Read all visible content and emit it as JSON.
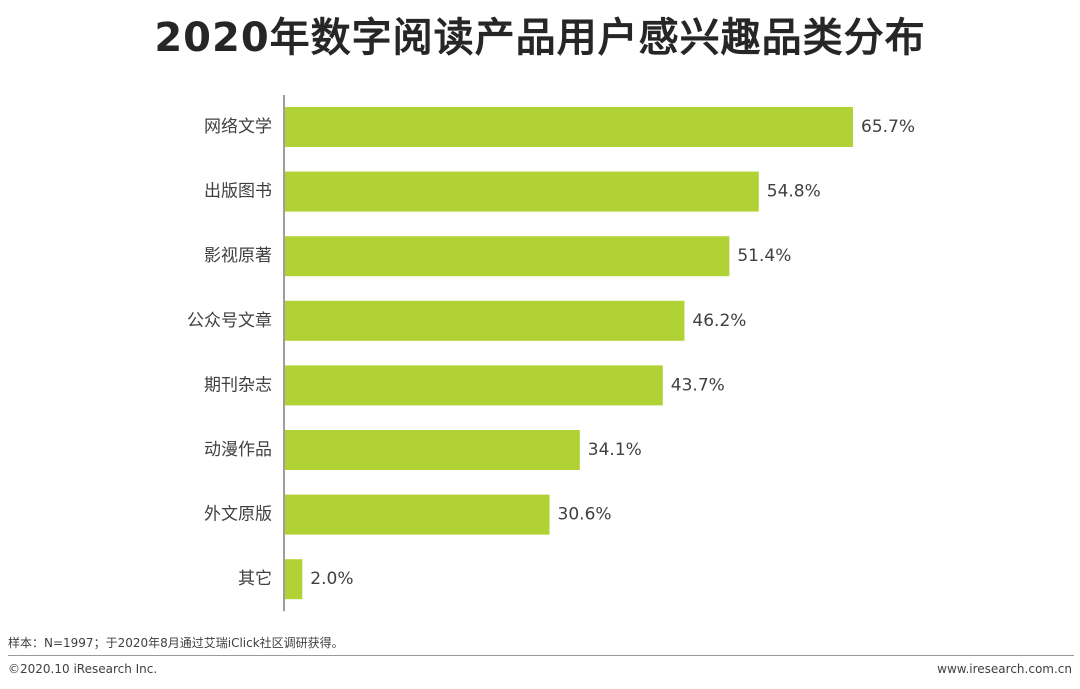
{
  "chart_data": {
    "type": "bar",
    "orientation": "horizontal",
    "title": "2020年数字阅读产品用户感兴趣品类分布",
    "categories": [
      "网络文学",
      "出版图书",
      "影视原著",
      "公众号文章",
      "期刊杂志",
      "动漫作品",
      "外文原版",
      "其它"
    ],
    "values": [
      65.7,
      54.8,
      51.4,
      46.2,
      43.7,
      34.1,
      30.6,
      2.0
    ],
    "value_labels": [
      "65.7%",
      "54.8%",
      "51.4%",
      "46.2%",
      "43.7%",
      "34.1%",
      "30.6%",
      "2.0%"
    ],
    "unit": "%",
    "xlim": [
      0,
      70
    ],
    "xlabel": "",
    "ylabel": "",
    "grid": false,
    "legend": "none",
    "bar_color": "#b0d235"
  },
  "footnote": "样本：N=1997；于2020年8月通过艾瑞iClick社区调研获得。",
  "copyright": "©2020.10 iResearch Inc.",
  "website": "www.iresearch.com.cn"
}
